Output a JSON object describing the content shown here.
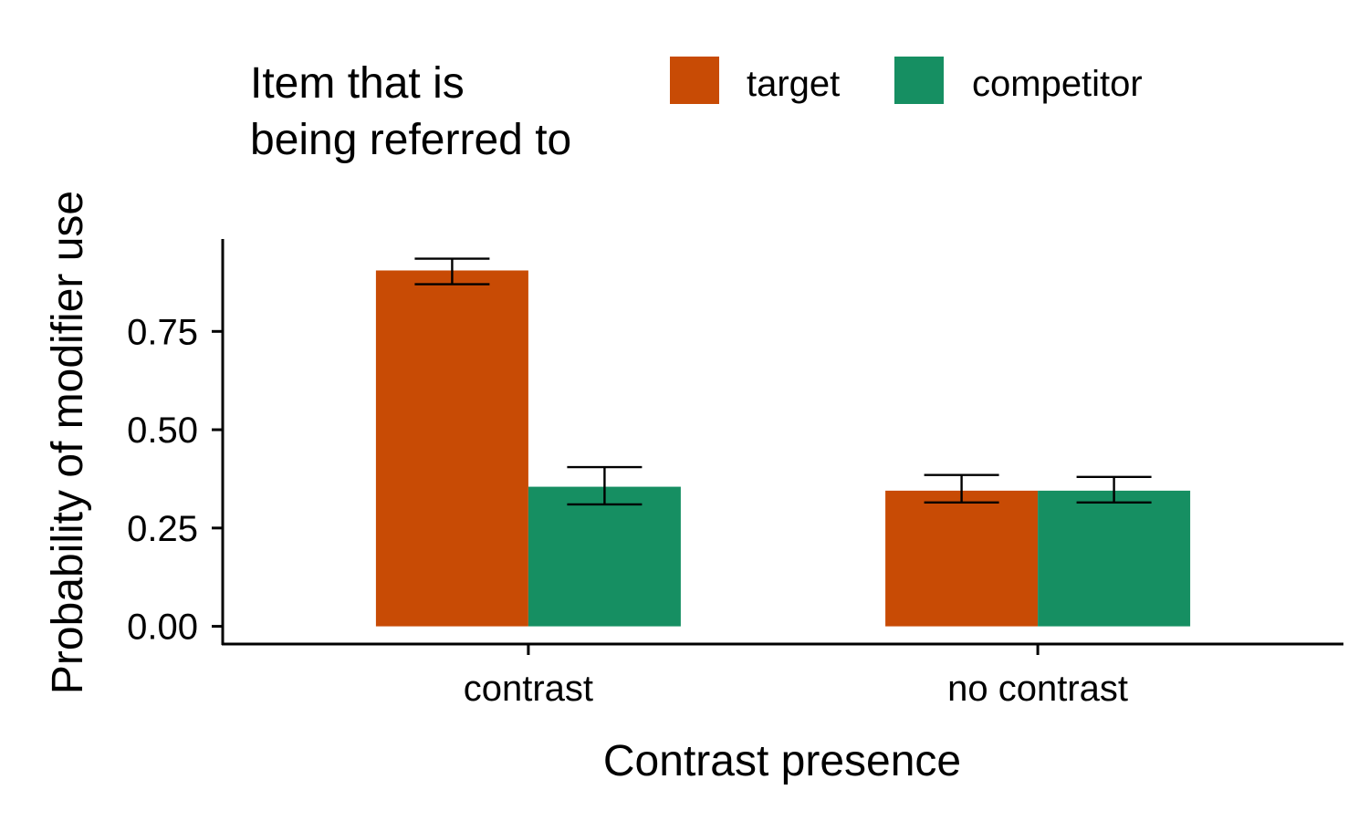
{
  "chart_data": {
    "type": "bar",
    "title": "",
    "xlabel": "Contrast presence",
    "ylabel": "Probability of modifier use",
    "categories": [
      "contrast",
      "no contrast"
    ],
    "series": [
      {
        "name": "target",
        "color": "#C84B05",
        "values": [
          0.905,
          0.345
        ],
        "error_low": [
          0.87,
          0.315
        ],
        "error_high": [
          0.935,
          0.385
        ]
      },
      {
        "name": "competitor",
        "color": "#168F62",
        "values": [
          0.355,
          0.345
        ],
        "error_low": [
          0.31,
          0.315
        ],
        "error_high": [
          0.405,
          0.38
        ]
      }
    ],
    "ylim": [
      -0.045,
      0.985
    ],
    "yticks": [
      0.0,
      0.25,
      0.5,
      0.75
    ],
    "ytick_labels": [
      "0.00",
      "0.25",
      "0.50",
      "0.75"
    ],
    "legend": {
      "title_lines": [
        "Item that is",
        "being referred to"
      ],
      "position": "top"
    },
    "grid": false
  }
}
